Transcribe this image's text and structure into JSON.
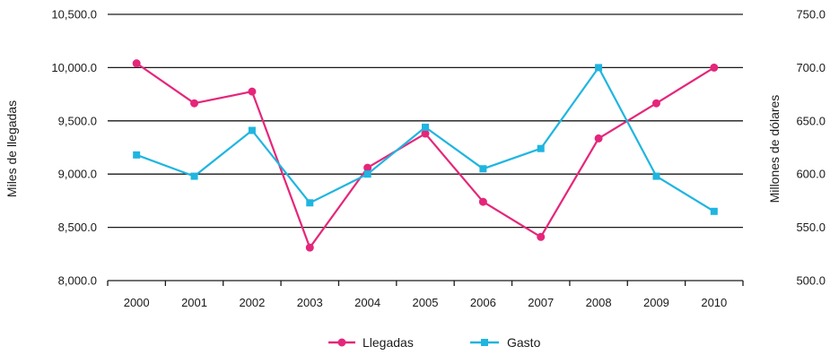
{
  "chart_data": {
    "type": "line",
    "categories": [
      "2000",
      "2001",
      "2002",
      "2003",
      "2004",
      "2005",
      "2006",
      "2007",
      "2008",
      "2009",
      "2010"
    ],
    "ylabel_left": "Miles de llegadas",
    "ylabel_right": "Millones de dólares",
    "ylim_left": [
      8000,
      10500
    ],
    "ylim_right": [
      500,
      750
    ],
    "yticks_left": [
      "8,000.0",
      "8,500.0",
      "9,000.0",
      "9,500.0",
      "10,000.0",
      "10,500.0"
    ],
    "yticks_right": [
      "500.0",
      "550.0",
      "600.0",
      "650.0",
      "700.0",
      "750.0"
    ],
    "grid": true,
    "legend_position": "bottom",
    "series": [
      {
        "name": "Llegadas",
        "axis": "left",
        "color": "#e5267a",
        "marker": "circle",
        "values": [
          10040,
          9665,
          9775,
          8310,
          9060,
          9380,
          8740,
          8410,
          9335,
          9665,
          10000
        ]
      },
      {
        "name": "Gasto",
        "axis": "right",
        "color": "#1fb5e0",
        "marker": "square",
        "values": [
          618,
          598,
          641,
          573,
          600,
          644,
          605,
          624,
          700,
          598,
          565
        ]
      }
    ]
  }
}
